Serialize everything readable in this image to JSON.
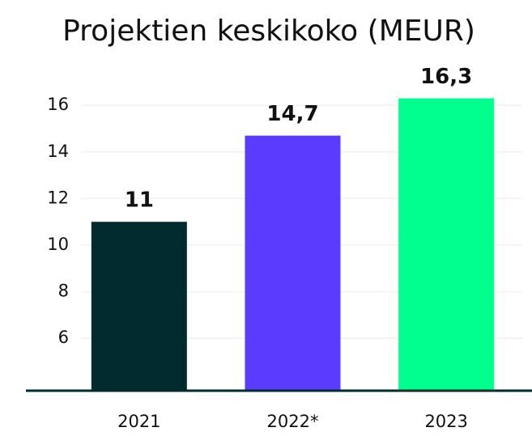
{
  "chart_data": {
    "type": "bar",
    "title": "Projektien keskikoko (MEUR)",
    "categories": [
      "2021",
      "2022*",
      "2023"
    ],
    "values": [
      11,
      14.7,
      16.3
    ],
    "value_labels": [
      "11",
      "14,7",
      "16,3"
    ],
    "colors": [
      "#022b30",
      "#5b3cff",
      "#00ff8c"
    ],
    "ylim": [
      3.75,
      17.5
    ],
    "yticks": [
      6,
      8,
      10,
      12,
      14,
      16
    ],
    "grid": true
  }
}
